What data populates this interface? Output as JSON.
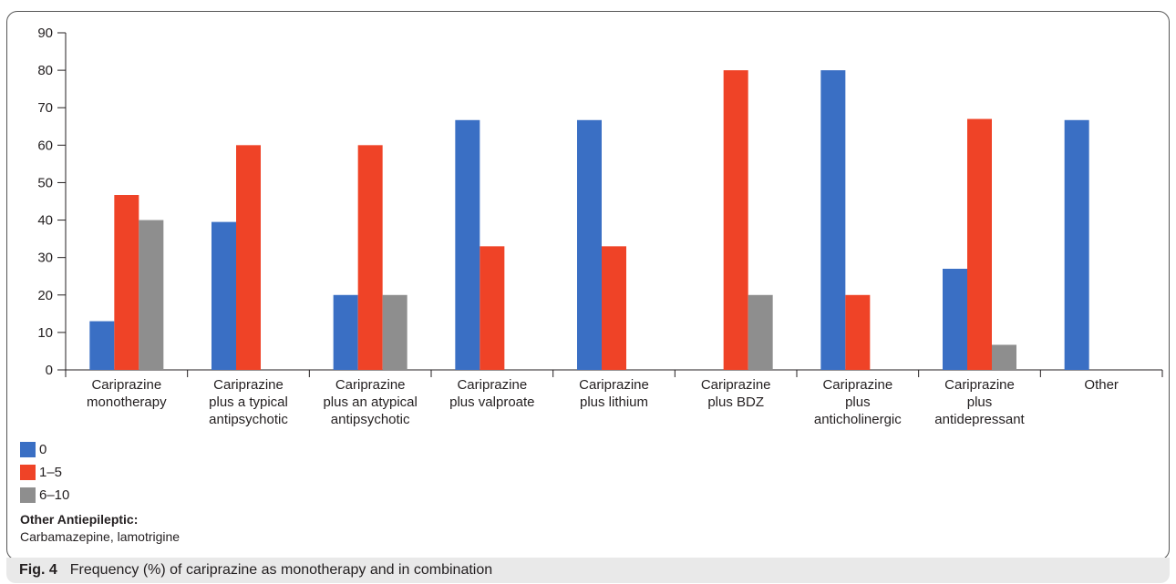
{
  "chart_data": {
    "type": "bar",
    "categories": [
      [
        "Cariprazine",
        "monotherapy"
      ],
      [
        "Cariprazine",
        "plus a typical",
        "antipsychotic"
      ],
      [
        "Cariprazine",
        "plus an atypical",
        "antipsychotic"
      ],
      [
        "Cariprazine",
        "plus valproate"
      ],
      [
        "Cariprazine",
        "plus lithium"
      ],
      [
        "Cariprazine",
        "plus BDZ"
      ],
      [
        "Cariprazine",
        "plus",
        "anticholinergic"
      ],
      [
        "Cariprazine",
        "plus",
        "antidepressant"
      ],
      [
        "Other"
      ]
    ],
    "series": [
      {
        "name": "0",
        "color": "#3a6fc4",
        "values": [
          13,
          39.5,
          20,
          66.7,
          66.7,
          0,
          80,
          27,
          66.7
        ]
      },
      {
        "name": "1–5",
        "color": "#ef4327",
        "values": [
          46.7,
          60,
          60,
          33,
          33,
          80,
          20,
          67,
          0
        ]
      },
      {
        "name": "6–10",
        "color": "#8e8e8e",
        "values": [
          40,
          0,
          20,
          0,
          0,
          20,
          0,
          6.7,
          0
        ]
      }
    ],
    "ylim": [
      0,
      90
    ],
    "yticks": [
      0,
      10,
      20,
      30,
      40,
      50,
      60,
      70,
      80,
      90
    ],
    "grid": false,
    "legend_position": "bottom-left"
  },
  "note": {
    "title": "Other Antiepileptic:",
    "text": "Carbamazepine, lamotrigine"
  },
  "caption": {
    "fig": "Fig. 4",
    "text": "Frequency (%) of cariprazine as monotherapy and in combination"
  }
}
